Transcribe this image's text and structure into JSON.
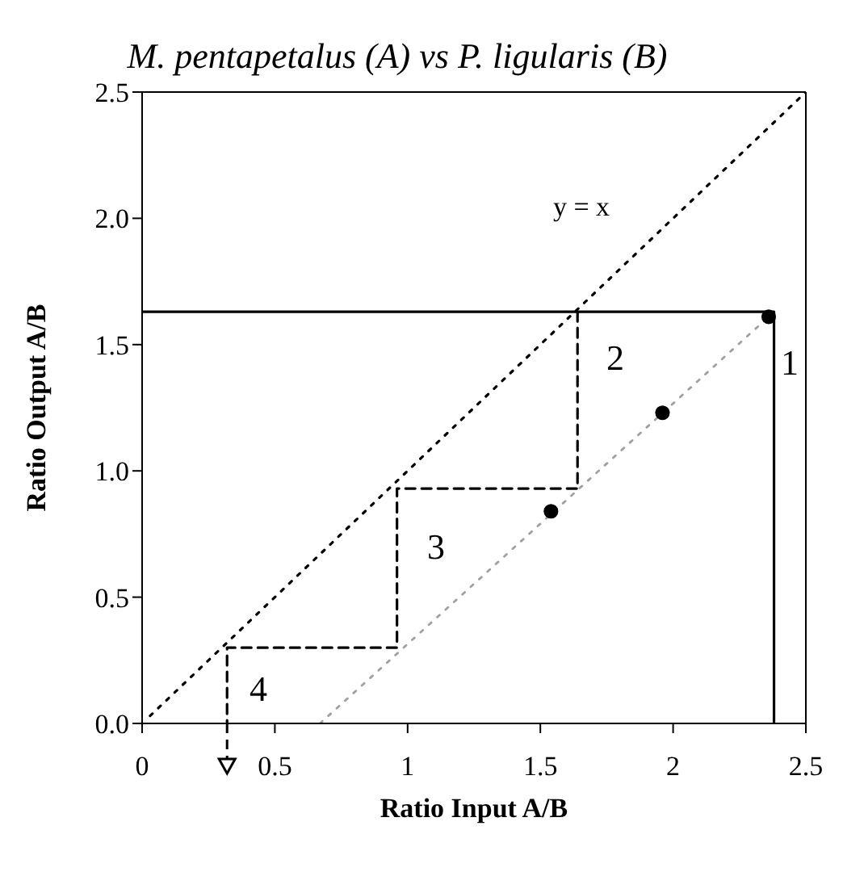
{
  "chart_data": {
    "type": "scatter",
    "title": "M. pentapetalus (A) vs P. ligularis (B)",
    "xlabel": "Ratio Input A/B",
    "ylabel": "Ratio Output A/B",
    "xlim": [
      0,
      2.5
    ],
    "xticks": [
      0,
      0.5,
      1,
      1.5,
      2,
      2.5
    ],
    "ylim": [
      0,
      2.5
    ],
    "yticks": [
      {
        "value": 0,
        "label": "0.0"
      },
      {
        "value": 0.5,
        "label": "0.5"
      },
      {
        "value": 1,
        "label": "1.0"
      },
      {
        "value": 1.5,
        "label": "1.5"
      },
      {
        "value": 2,
        "label": "2.0"
      },
      {
        "value": 2.5,
        "label": "2.5"
      }
    ],
    "grid": false,
    "series": [
      {
        "type": "line",
        "line_style": "dotted",
        "color": "#000000",
        "x": [
          0.03,
          2.5
        ],
        "values": [
          0.03,
          2.5
        ]
      },
      {
        "type": "line",
        "line_style": "dotted",
        "color": "#a0a0a0",
        "x": [
          0.67,
          2.36
        ],
        "values": [
          0,
          1.61
        ]
      },
      {
        "type": "line",
        "line_style": "solid",
        "color": "#000000",
        "x": [
          0,
          2.38,
          2.38
        ],
        "values": [
          1.63,
          1.63,
          0
        ]
      },
      {
        "type": "line",
        "line_style": "dashed",
        "color": "#000000",
        "x": [
          1.64,
          1.64,
          0.96,
          0.96,
          0.32,
          0.32
        ],
        "values": [
          1.63,
          0.93,
          0.93,
          0.3,
          0.3,
          0
        ]
      },
      {
        "marker": "circle",
        "color": "#000000",
        "x": [
          1.54,
          1.96,
          2.36
        ],
        "values": [
          0.84,
          1.23,
          1.61
        ]
      }
    ],
    "annotations": [
      "y = x",
      "1",
      "2",
      "3",
      "4"
    ]
  }
}
